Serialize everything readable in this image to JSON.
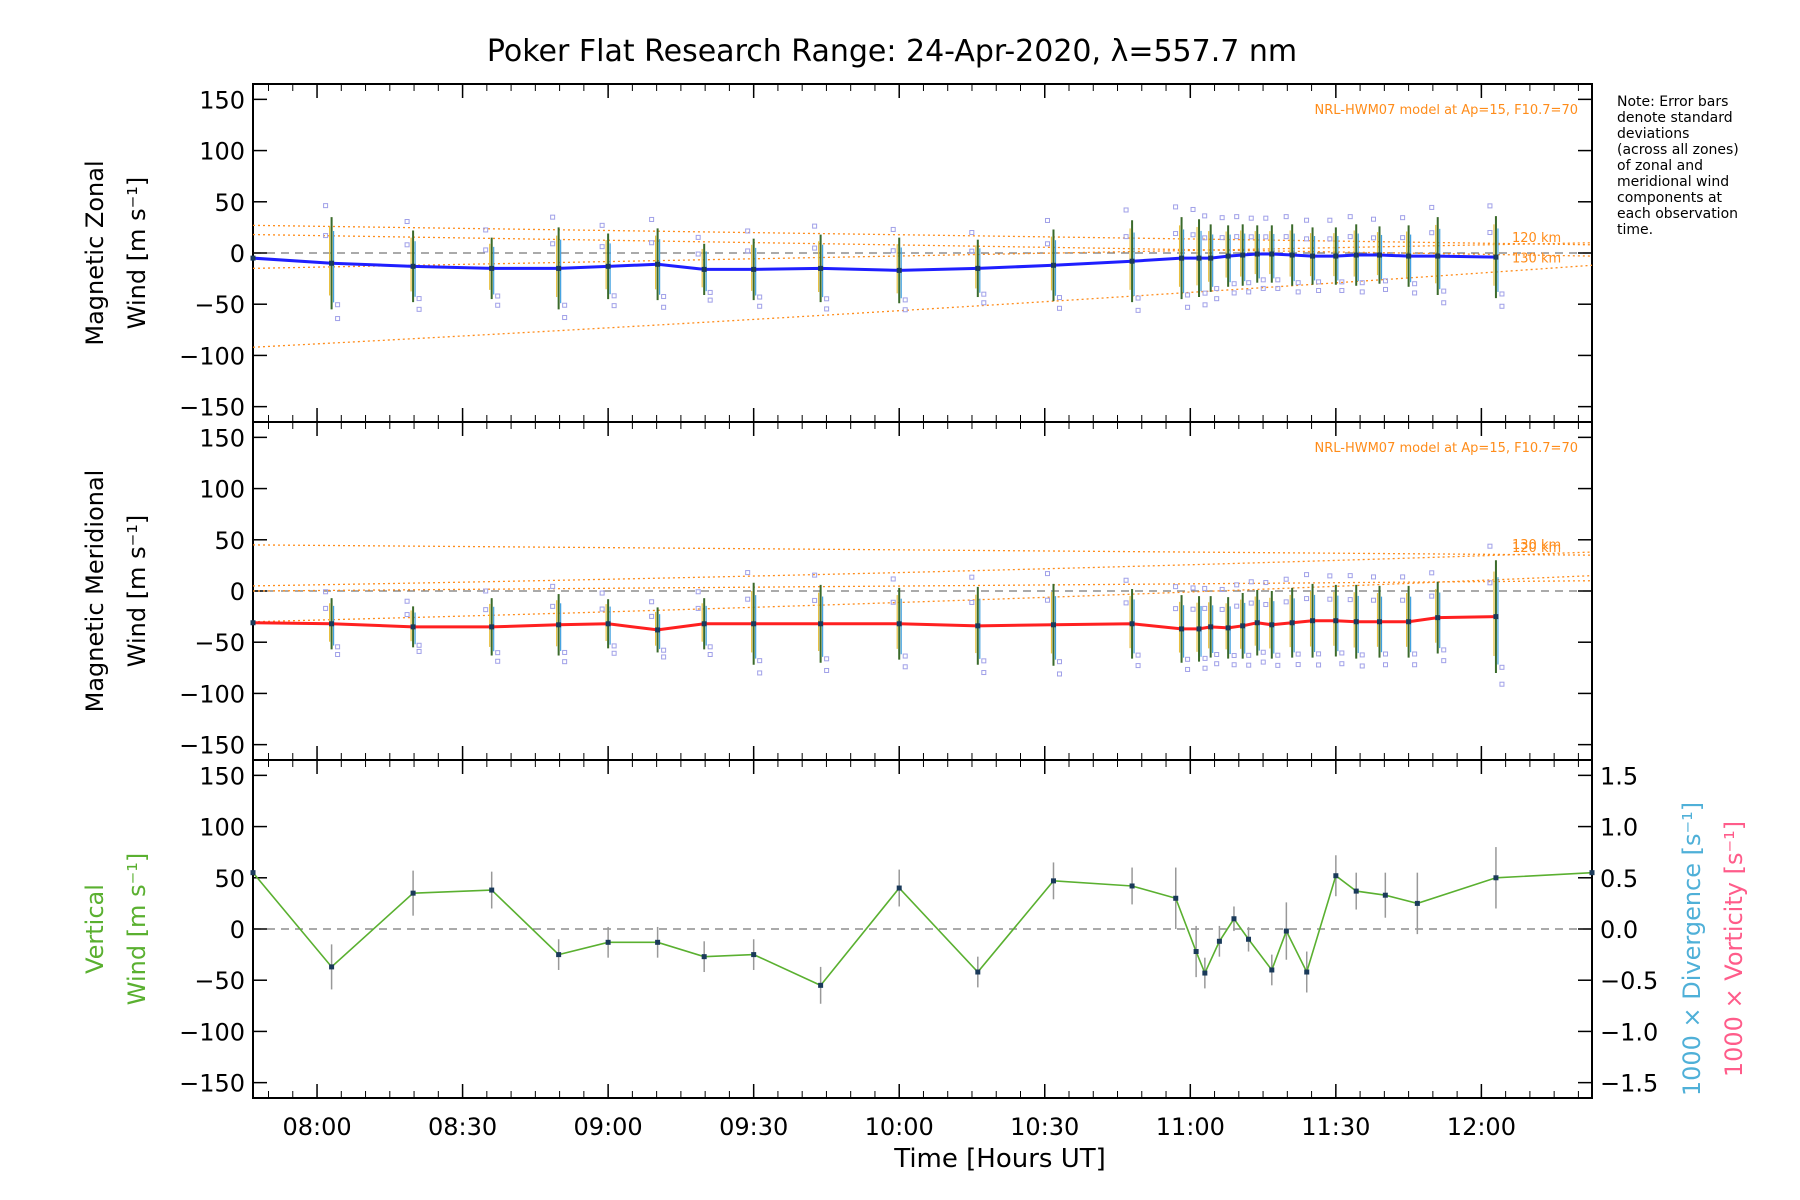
{
  "chart_data": {
    "type": "line",
    "title": "Poker Flat Research Range: 24-Apr-2020, λ=557.7 nm",
    "xlabel": "Time [Hours UT]",
    "xlim": [
      7.78,
      12.38
    ],
    "xticks": [
      "08:00",
      "08:30",
      "09:00",
      "09:30",
      "10:00",
      "10:30",
      "11:00",
      "11:30",
      "12:00"
    ],
    "xtick_values": [
      8.0,
      8.5,
      9.0,
      9.5,
      10.0,
      10.5,
      11.0,
      11.5,
      12.0
    ],
    "note": [
      "Note: Error bars",
      "denote standard",
      "deviations",
      "(across all zones)",
      "of zonal and",
      "meridional wind",
      "components at",
      "each observation",
      "time."
    ],
    "colors": {
      "zonal": "#1f1fff",
      "meridional": "#ff2020",
      "vertical": "#5ab030",
      "model": "#ff8c1a",
      "divergence": "#4fb0d8",
      "vorticity": "#ff5c8a",
      "zone_markers": "#a0a0e8"
    },
    "panels": [
      {
        "id": "zonal",
        "ylabel_line1": "Magnetic Zonal",
        "ylabel_line2": "Wind [m s⁻¹]",
        "ylim": [
          -165,
          165
        ],
        "yticks": [
          "150",
          "100",
          "50",
          "0",
          "−50",
          "−100",
          "−150"
        ],
        "ytick_values": [
          150,
          100,
          50,
          0,
          -50,
          -100,
          -150
        ],
        "model_text": "NRL-HWM07 model at Ap=15, F10.7=70",
        "model_curves": [
          {
            "label": "120 km",
            "y_start": 27,
            "y_end": 8
          },
          {
            "label": "130 km",
            "y_start": -92,
            "y_end": -12
          },
          {
            "label": "",
            "y_start": -15,
            "y_end": 10
          },
          {
            "label": "",
            "y_start": 18,
            "y_end": -3
          }
        ],
        "x": [
          7.78,
          8.05,
          8.33,
          8.6,
          8.83,
          9.0,
          9.17,
          9.33,
          9.5,
          9.73,
          10.0,
          10.27,
          10.53,
          10.8,
          10.97,
          11.03,
          11.07,
          11.13,
          11.18,
          11.23,
          11.28,
          11.35,
          11.42,
          11.5,
          11.57,
          11.65,
          11.75,
          11.85,
          12.05
        ],
        "y": [
          -5,
          -10,
          -13,
          -15,
          -15,
          -13,
          -11,
          -16,
          -16,
          -15,
          -17,
          -15,
          -12,
          -8,
          -5,
          -5,
          -5,
          -3,
          -2,
          -1,
          -1,
          -2,
          -3,
          -3,
          -2,
          -2,
          -3,
          -3,
          -4
        ],
        "err": [
          0,
          45,
          35,
          30,
          40,
          32,
          35,
          25,
          30,
          33,
          32,
          28,
          35,
          40,
          40,
          38,
          33,
          30,
          30,
          28,
          28,
          30,
          28,
          28,
          30,
          28,
          30,
          38,
          40
        ]
      },
      {
        "id": "meridional",
        "ylabel_line1": "Magnetic Meridional",
        "ylabel_line2": "Wind [m s⁻¹]",
        "ylim": [
          -165,
          165
        ],
        "yticks": [
          "150",
          "100",
          "50",
          "0",
          "−50",
          "−100",
          "−150"
        ],
        "ytick_values": [
          150,
          100,
          50,
          0,
          -50,
          -100,
          -150
        ],
        "model_text": "NRL-HWM07 model at Ap=15, F10.7=70",
        "model_curves": [
          {
            "label": "120 km",
            "y_start": 45,
            "y_end": 35
          },
          {
            "label": "130 km",
            "y_start": 5,
            "y_end": 38
          },
          {
            "label": "",
            "y_start": -30,
            "y_end": 15
          },
          {
            "label": "",
            "y_start": 0,
            "y_end": 10
          }
        ],
        "x": [
          7.78,
          8.05,
          8.33,
          8.6,
          8.83,
          9.0,
          9.17,
          9.33,
          9.5,
          9.73,
          10.0,
          10.27,
          10.53,
          10.8,
          10.97,
          11.03,
          11.07,
          11.13,
          11.18,
          11.23,
          11.28,
          11.35,
          11.42,
          11.5,
          11.57,
          11.65,
          11.75,
          11.85,
          12.05
        ],
        "y": [
          -31,
          -32,
          -35,
          -35,
          -33,
          -32,
          -38,
          -32,
          -32,
          -32,
          -32,
          -34,
          -33,
          -32,
          -37,
          -37,
          -35,
          -36,
          -34,
          -31,
          -33,
          -31,
          -29,
          -29,
          -30,
          -30,
          -30,
          -26,
          -25
        ],
        "err": [
          0,
          25,
          20,
          28,
          30,
          24,
          22,
          25,
          40,
          38,
          35,
          38,
          40,
          34,
          33,
          32,
          30,
          30,
          32,
          32,
          33,
          34,
          36,
          35,
          36,
          35,
          35,
          35,
          55
        ]
      },
      {
        "id": "vertical",
        "ylabel_line1": "Vertical",
        "ylabel_line2": "Wind [m s⁻¹]",
        "ylim": [
          -165,
          165
        ],
        "yticks": [
          "150",
          "100",
          "50",
          "0",
          "−50",
          "−100",
          "−150"
        ],
        "ytick_values": [
          150,
          100,
          50,
          0,
          -50,
          -100,
          -150
        ],
        "right_yticks": [
          "1.5",
          "1.0",
          "0.5",
          "0.0",
          "−0.5",
          "−1.0",
          "−1.5"
        ],
        "right_ytick_values": [
          1.5,
          1.0,
          0.5,
          0.0,
          -0.5,
          -1.0,
          -1.5
        ],
        "right_label_divergence": "1000 × Divergence [s⁻¹]",
        "right_label_vorticity": "1000 × Vorticity [s⁻¹]",
        "x": [
          7.78,
          8.05,
          8.33,
          8.6,
          8.83,
          9.0,
          9.17,
          9.33,
          9.5,
          9.73,
          10.0,
          10.27,
          10.53,
          10.8,
          10.95,
          11.02,
          11.05,
          11.1,
          11.15,
          11.2,
          11.28,
          11.33,
          11.4,
          11.5,
          11.57,
          11.67,
          11.78,
          12.05,
          12.38
        ],
        "y": [
          55,
          -37,
          35,
          38,
          -25,
          -13,
          -13,
          -27,
          -25,
          -55,
          40,
          -42,
          47,
          42,
          30,
          -22,
          -43,
          -12,
          10,
          -10,
          -40,
          -2,
          -42,
          52,
          37,
          33,
          25,
          50,
          55
        ],
        "err": [
          0,
          22,
          22,
          18,
          15,
          15,
          15,
          15,
          15,
          18,
          18,
          15,
          18,
          18,
          30,
          25,
          15,
          15,
          12,
          12,
          15,
          28,
          20,
          20,
          18,
          22,
          30,
          30,
          0
        ]
      }
    ]
  }
}
